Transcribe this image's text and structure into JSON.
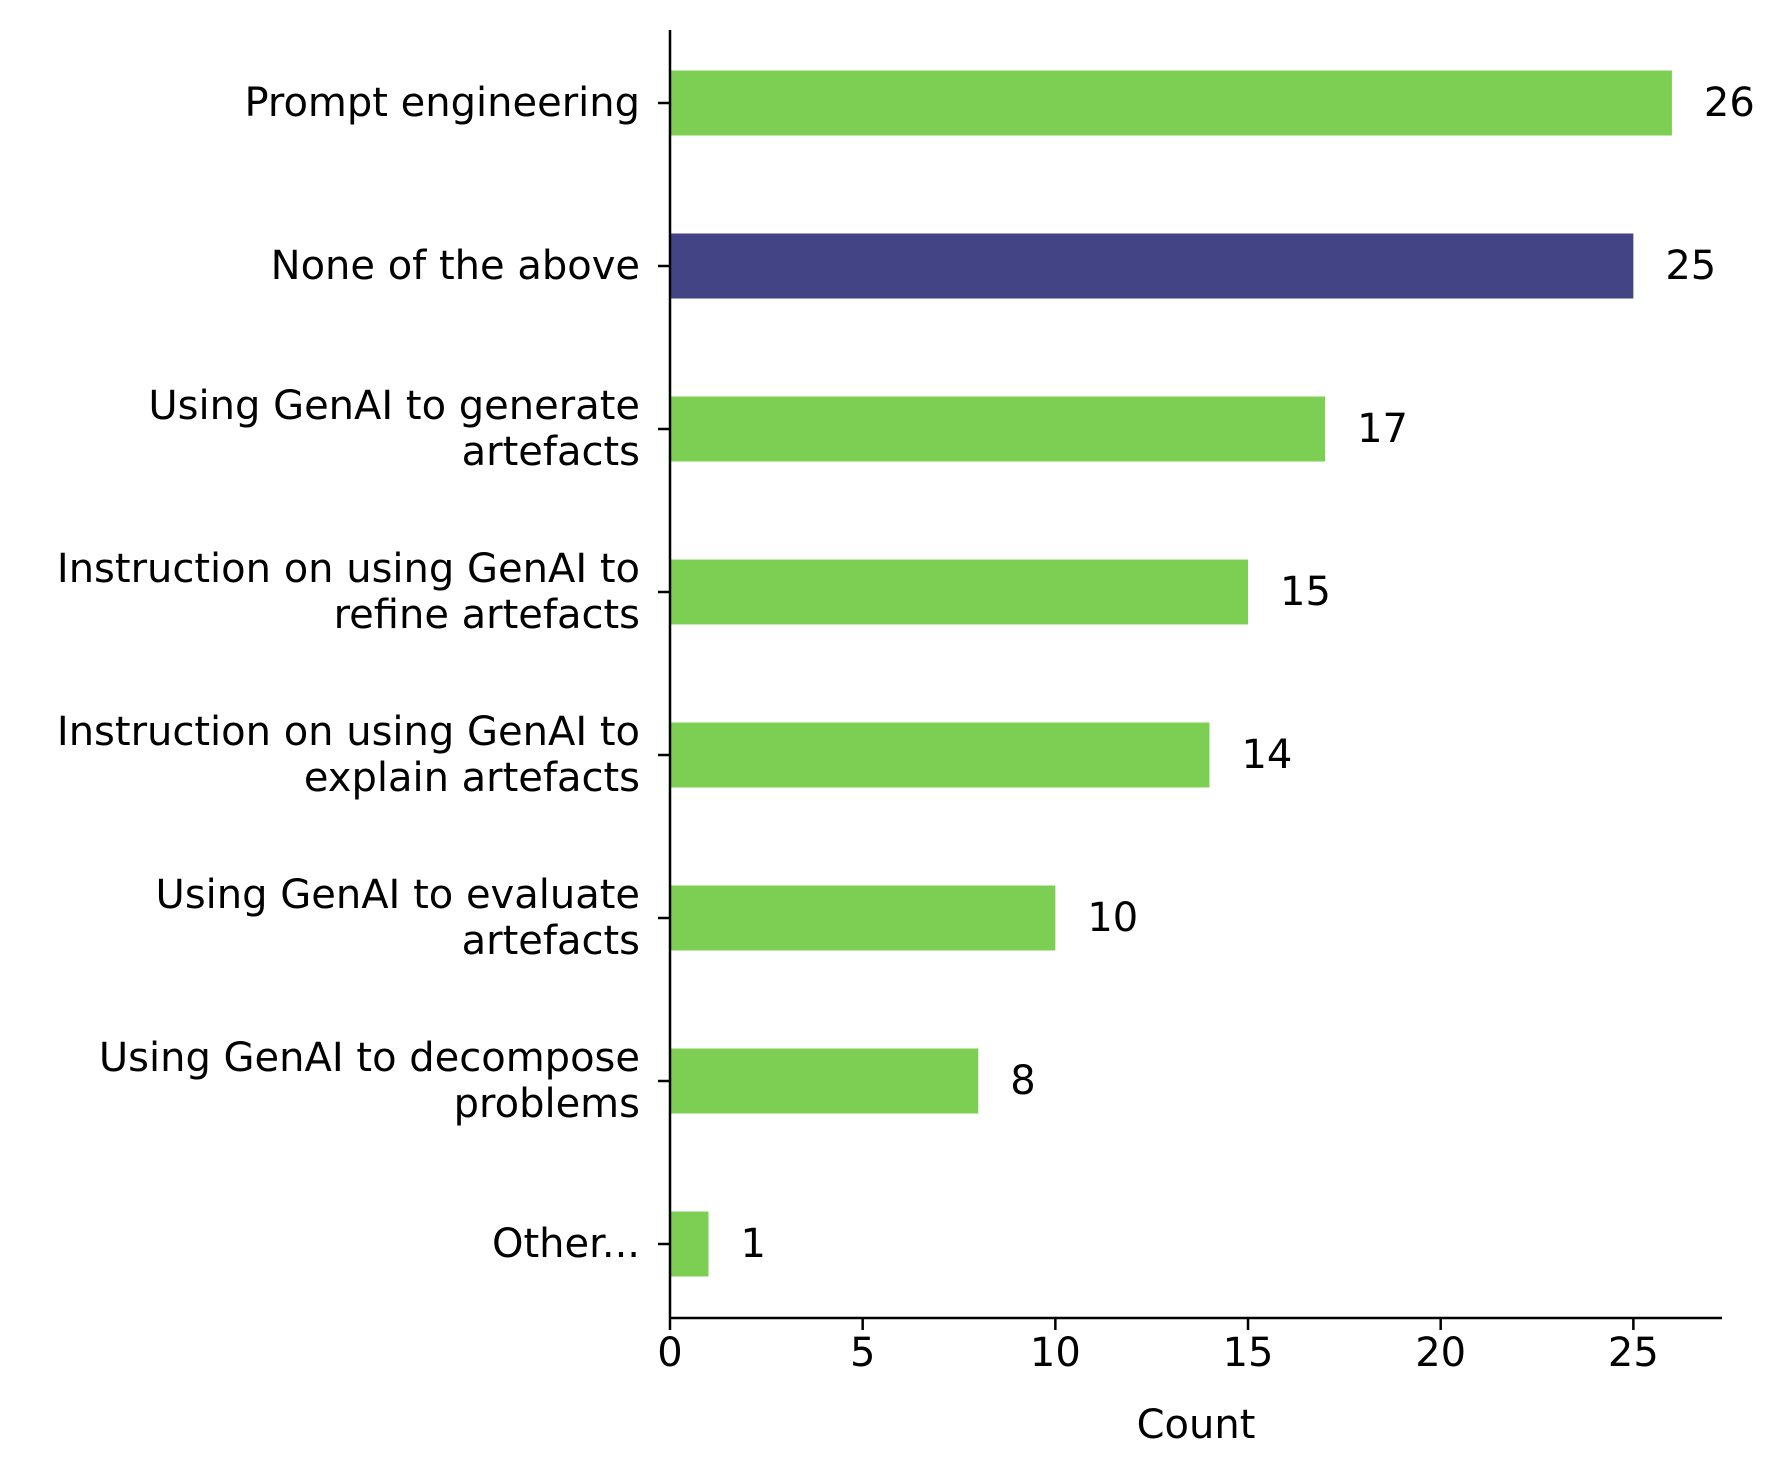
{
  "chart_data": {
    "type": "bar",
    "orientation": "horizontal",
    "title": "",
    "xlabel": "Count",
    "ylabel": "",
    "xlim": [
      0,
      27.3
    ],
    "xticks": [
      0,
      5,
      10,
      15,
      20,
      25
    ],
    "grid": false,
    "categories": [
      [
        "Prompt engineering"
      ],
      [
        "None of the above"
      ],
      [
        "Using GenAI to generate",
        "artefacts"
      ],
      [
        "Instruction on using GenAI to",
        "refine artefacts"
      ],
      [
        "Instruction on using GenAI to",
        "explain artefacts"
      ],
      [
        "Using GenAI to evaluate",
        "artefacts"
      ],
      [
        "Using GenAI to decompose",
        "problems"
      ],
      [
        "Other..."
      ]
    ],
    "values": [
      26,
      25,
      17,
      15,
      14,
      10,
      8,
      1
    ],
    "value_labels": [
      "26",
      "25",
      "17",
      "15",
      "14",
      "10",
      "8",
      "1"
    ],
    "bar_colors": [
      "#7ccf52",
      "#424485",
      "#7ccf52",
      "#7ccf52",
      "#7ccf52",
      "#7ccf52",
      "#7ccf52",
      "#7ccf52"
    ]
  }
}
